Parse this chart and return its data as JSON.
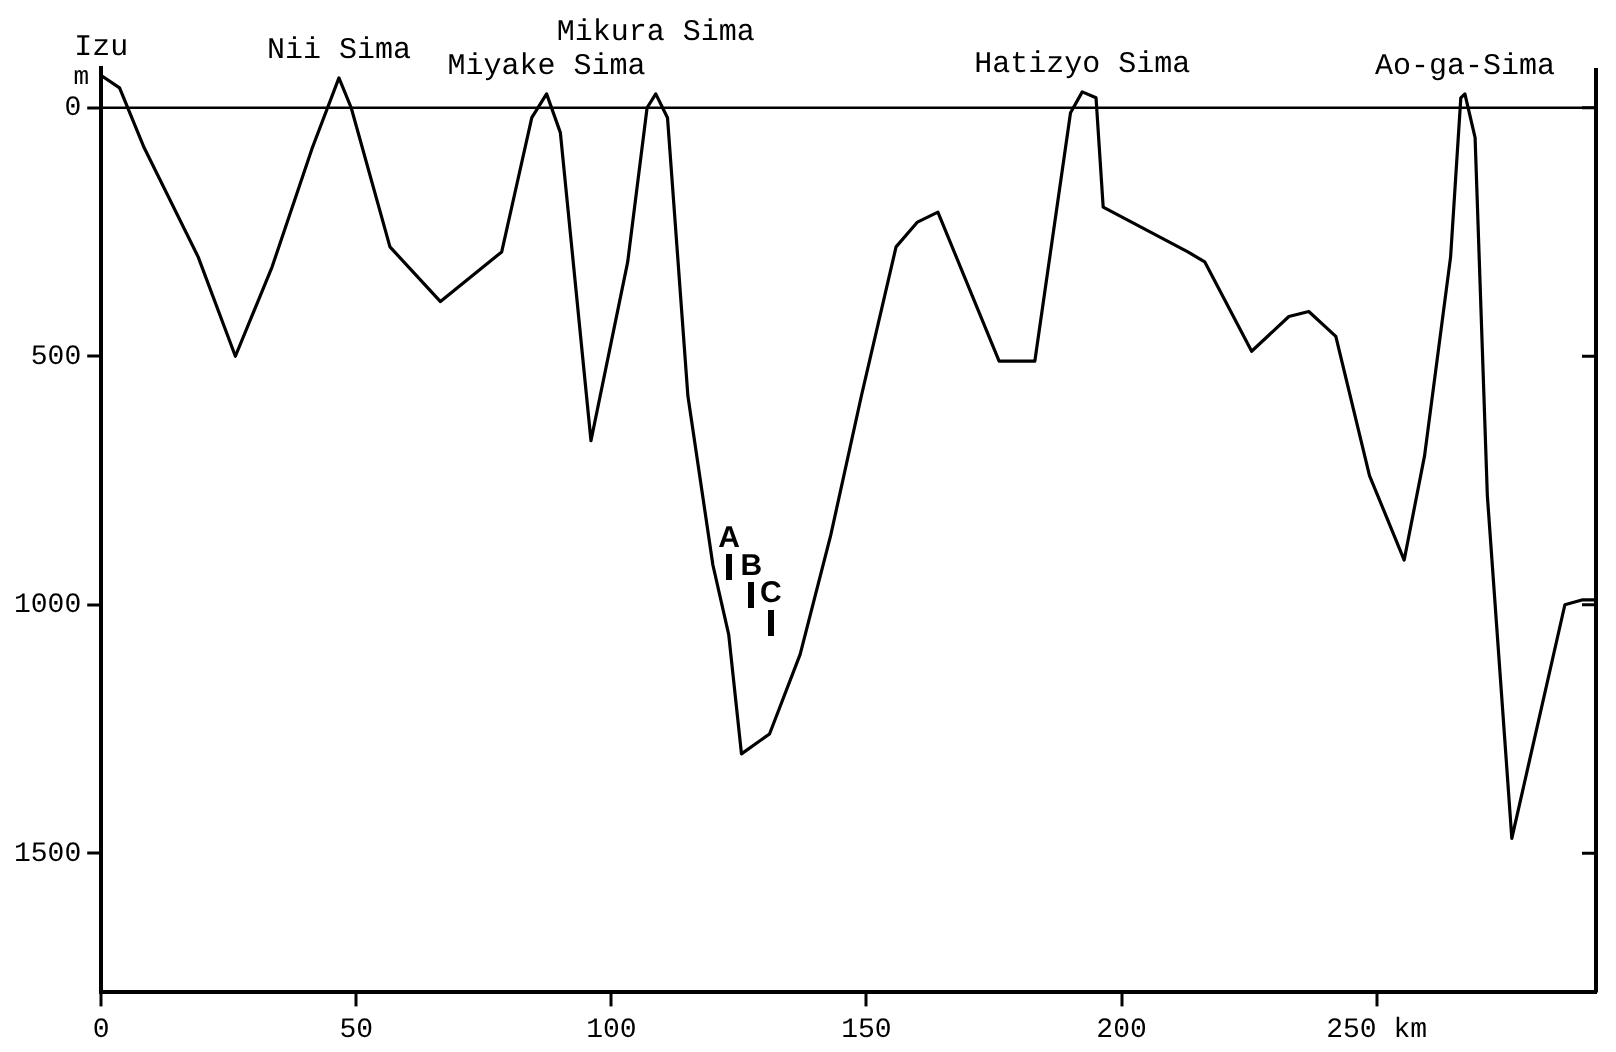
{
  "chart_data": {
    "type": "line",
    "ylabel": "m",
    "x": [
      0,
      3.6,
      8.4,
      19,
      26.3,
      33.5,
      41.4,
      46.6,
      49,
      56.6,
      66.5,
      78.5,
      84.4,
      87.3,
      90,
      96,
      103.2,
      107,
      108.7,
      111,
      115,
      119.9,
      123,
      125.5,
      131,
      137,
      143,
      149,
      155.8,
      160,
      164,
      176,
      183,
      190,
      192.3,
      195,
      196.4,
      213,
      216.3,
      225.5,
      232.8,
      236.7,
      242,
      248.6,
      255.4,
      259.4,
      264.5,
      266.5,
      267.3,
      269.3,
      271.7,
      276.5,
      286.9,
      290.4,
      293
    ],
    "series": [
      {
        "color": "#000000",
        "values": [
          -65,
          -40,
          80,
          300,
          500,
          320,
          80,
          -60,
          0,
          280,
          390,
          290,
          20,
          -28,
          50,
          670,
          310,
          0,
          -28,
          20,
          580,
          920,
          1060,
          1300,
          1260,
          1100,
          860,
          580,
          280,
          230,
          210,
          510,
          510,
          10,
          -32,
          -20,
          200,
          290,
          310,
          490,
          420,
          410,
          460,
          740,
          910,
          700,
          300,
          -20,
          -28,
          60,
          780,
          1470,
          1000,
          990,
          990
        ]
      }
    ],
    "xlim": [
      0,
      293
    ],
    "ylim": [
      1780,
      -80
    ],
    "xticks": [
      0,
      50,
      100,
      150,
      200,
      {
        "value": 250,
        "label": "250 km"
      }
    ],
    "yticks": [
      0,
      500,
      1000,
      1500
    ],
    "grid": false,
    "legend": false,
    "marker": "none",
    "line_style": "solid",
    "ref_lines": [
      {
        "axis": "y",
        "value": 0,
        "color": "#000000"
      }
    ],
    "annotations": [
      {
        "text": "Izu",
        "x": 0,
        "y": -65
      },
      {
        "text": "Nii Sima",
        "x": 46.6,
        "y": -60
      },
      {
        "text": "Miyake Sima",
        "x": 87.3,
        "y": -28
      },
      {
        "text": "Mikura Sima",
        "x": 108.7,
        "y": -28
      },
      {
        "text": "Hatizyo Sima",
        "x": 192.3,
        "y": -32
      },
      {
        "text": "Ao-ga-Sima",
        "x": 267.3,
        "y": -28
      },
      "A",
      "B",
      "C"
    ]
  }
}
